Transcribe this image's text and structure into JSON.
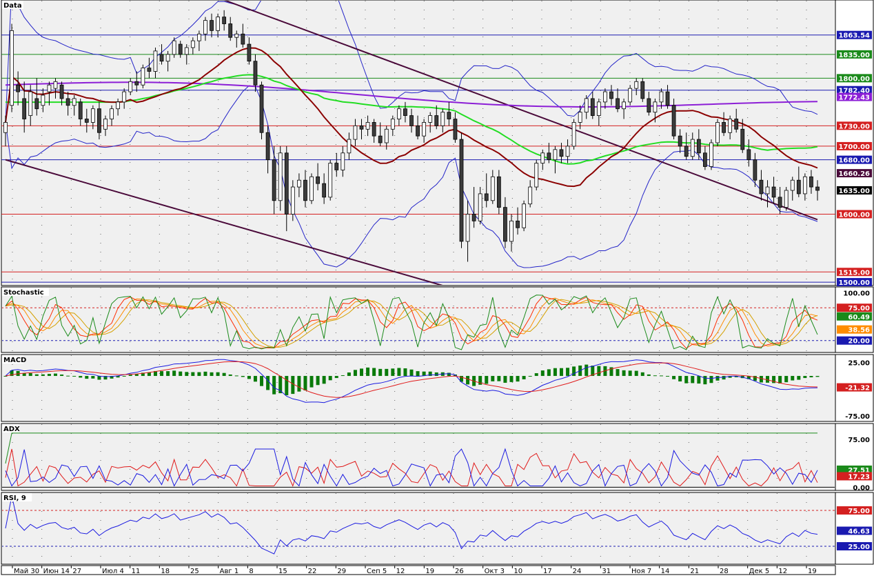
{
  "colors": {
    "panel_bg": "#f0f0f0",
    "axis_bg": "#ffffff",
    "candle_up": "#ffffff",
    "candle_down": "#3c3c3c",
    "candle_line": "#000000",
    "bollinger": "#2323c8",
    "ma_short": "#8b0000",
    "ma_mid": "#22dd22",
    "ma_long": "#8c1ed6",
    "trend": "#4a0a3a",
    "level_red": "#d42020",
    "level_green": "#1a8a1a",
    "level_blue": "#1a1ab0",
    "stoch_k": "#1a8a1a",
    "stoch_d1": "#ff2a00",
    "stoch_d2": "#ff8c00",
    "stoch_d3": "#d4a000",
    "macd_line": "#1a1ae0",
    "macd_signal": "#e01a1a",
    "macd_hist": "#0a7a0a",
    "adx_plus": "#e01a1a",
    "adx_minus": "#1a1ae0",
    "adx_main": "#1a8a1a",
    "rsi_line": "#1a1ae0"
  },
  "panels": {
    "price": {
      "label": "Data"
    },
    "stochastic": {
      "label": "Stochastic"
    },
    "macd": {
      "label": "MACD"
    },
    "adx": {
      "label": "ADX"
    },
    "rsi": {
      "label": "RSI, 9"
    }
  },
  "chart_data": {
    "type": "line",
    "x_ticks": [
      "Май 30",
      "Июн 14",
      "27",
      "Июл 4",
      "11",
      "18",
      "25",
      "Авг 1",
      "8",
      "15",
      "22",
      "29",
      "Сеп 5",
      "12",
      "19",
      "26",
      "Окт 3",
      "10",
      "17",
      "24",
      "31",
      "Ноя 7",
      "14",
      "21",
      "28",
      "Дек 5",
      "12",
      "19"
    ],
    "price": {
      "ylim": [
        1495,
        1915
      ],
      "candles": [
        [
          1720,
          1745,
          1700,
          1735
        ],
        [
          1760,
          1880,
          1750,
          1870
        ],
        [
          1790,
          1810,
          1760,
          1780
        ],
        [
          1770,
          1795,
          1720,
          1740
        ],
        [
          1745,
          1790,
          1730,
          1780
        ],
        [
          1770,
          1800,
          1745,
          1755
        ],
        [
          1760,
          1785,
          1750,
          1775
        ],
        [
          1780,
          1795,
          1760,
          1790
        ],
        [
          1785,
          1800,
          1770,
          1795
        ],
        [
          1790,
          1795,
          1760,
          1770
        ],
        [
          1770,
          1780,
          1745,
          1760
        ],
        [
          1760,
          1775,
          1745,
          1770
        ],
        [
          1765,
          1770,
          1730,
          1740
        ],
        [
          1740,
          1755,
          1720,
          1735
        ],
        [
          1735,
          1760,
          1725,
          1755
        ],
        [
          1755,
          1765,
          1710,
          1720
        ],
        [
          1725,
          1745,
          1715,
          1740
        ],
        [
          1740,
          1760,
          1730,
          1755
        ],
        [
          1755,
          1770,
          1745,
          1765
        ],
        [
          1765,
          1785,
          1755,
          1780
        ],
        [
          1780,
          1800,
          1775,
          1795
        ],
        [
          1795,
          1810,
          1780,
          1790
        ],
        [
          1790,
          1820,
          1785,
          1815
        ],
        [
          1815,
          1830,
          1800,
          1810
        ],
        [
          1810,
          1845,
          1800,
          1840
        ],
        [
          1835,
          1850,
          1820,
          1825
        ],
        [
          1825,
          1840,
          1810,
          1835
        ],
        [
          1835,
          1860,
          1830,
          1855
        ],
        [
          1850,
          1855,
          1830,
          1835
        ],
        [
          1835,
          1850,
          1820,
          1845
        ],
        [
          1845,
          1860,
          1835,
          1855
        ],
        [
          1855,
          1870,
          1840,
          1865
        ],
        [
          1865,
          1890,
          1855,
          1885
        ],
        [
          1885,
          1895,
          1860,
          1870
        ],
        [
          1870,
          1895,
          1860,
          1890
        ],
        [
          1890,
          1900,
          1870,
          1880
        ],
        [
          1880,
          1890,
          1855,
          1860
        ],
        [
          1860,
          1870,
          1845,
          1865
        ],
        [
          1865,
          1880,
          1845,
          1850
        ],
        [
          1850,
          1860,
          1820,
          1825
        ],
        [
          1825,
          1835,
          1780,
          1790
        ],
        [
          1790,
          1795,
          1710,
          1720
        ],
        [
          1720,
          1730,
          1660,
          1680
        ],
        [
          1680,
          1700,
          1600,
          1620
        ],
        [
          1620,
          1700,
          1605,
          1690
        ],
        [
          1690,
          1700,
          1575,
          1600
        ],
        [
          1600,
          1650,
          1590,
          1640
        ],
        [
          1640,
          1660,
          1625,
          1650
        ],
        [
          1650,
          1665,
          1610,
          1620
        ],
        [
          1620,
          1660,
          1615,
          1655
        ],
        [
          1655,
          1675,
          1635,
          1645
        ],
        [
          1645,
          1660,
          1615,
          1625
        ],
        [
          1625,
          1680,
          1620,
          1675
        ],
        [
          1675,
          1690,
          1655,
          1665
        ],
        [
          1665,
          1700,
          1655,
          1690
        ],
        [
          1690,
          1720,
          1680,
          1710
        ],
        [
          1710,
          1740,
          1700,
          1730
        ],
        [
          1730,
          1740,
          1710,
          1725
        ],
        [
          1725,
          1745,
          1715,
          1735
        ],
        [
          1735,
          1740,
          1705,
          1715
        ],
        [
          1715,
          1735,
          1700,
          1705
        ],
        [
          1705,
          1730,
          1695,
          1725
        ],
        [
          1725,
          1745,
          1715,
          1740
        ],
        [
          1740,
          1760,
          1730,
          1755
        ],
        [
          1755,
          1765,
          1735,
          1745
        ],
        [
          1745,
          1755,
          1720,
          1730
        ],
        [
          1730,
          1745,
          1710,
          1715
        ],
        [
          1715,
          1740,
          1705,
          1735
        ],
        [
          1735,
          1750,
          1720,
          1745
        ],
        [
          1745,
          1760,
          1725,
          1730
        ],
        [
          1730,
          1755,
          1720,
          1750
        ],
        [
          1750,
          1765,
          1730,
          1740
        ],
        [
          1740,
          1750,
          1705,
          1710
        ],
        [
          1710,
          1720,
          1550,
          1560
        ],
        [
          1560,
          1620,
          1530,
          1600
        ],
        [
          1600,
          1640,
          1580,
          1590
        ],
        [
          1590,
          1640,
          1585,
          1630
        ],
        [
          1630,
          1660,
          1610,
          1620
        ],
        [
          1620,
          1665,
          1615,
          1655
        ],
        [
          1655,
          1665,
          1600,
          1610
        ],
        [
          1610,
          1625,
          1550,
          1560
        ],
        [
          1560,
          1600,
          1545,
          1590
        ],
        [
          1590,
          1610,
          1570,
          1580
        ],
        [
          1580,
          1620,
          1575,
          1615
        ],
        [
          1615,
          1650,
          1610,
          1640
        ],
        [
          1640,
          1680,
          1635,
          1675
        ],
        [
          1675,
          1695,
          1665,
          1690
        ],
        [
          1690,
          1705,
          1675,
          1680
        ],
        [
          1680,
          1700,
          1660,
          1695
        ],
        [
          1695,
          1705,
          1675,
          1685
        ],
        [
          1685,
          1710,
          1675,
          1700
        ],
        [
          1700,
          1740,
          1695,
          1735
        ],
        [
          1735,
          1760,
          1725,
          1750
        ],
        [
          1750,
          1775,
          1740,
          1770
        ],
        [
          1770,
          1780,
          1740,
          1745
        ],
        [
          1745,
          1770,
          1730,
          1765
        ],
        [
          1765,
          1785,
          1755,
          1780
        ],
        [
          1780,
          1790,
          1760,
          1770
        ],
        [
          1770,
          1785,
          1750,
          1755
        ],
        [
          1755,
          1770,
          1740,
          1765
        ],
        [
          1765,
          1790,
          1760,
          1785
        ],
        [
          1785,
          1800,
          1775,
          1795
        ],
        [
          1795,
          1800,
          1765,
          1770
        ],
        [
          1770,
          1780,
          1745,
          1750
        ],
        [
          1750,
          1770,
          1735,
          1765
        ],
        [
          1765,
          1785,
          1755,
          1780
        ],
        [
          1780,
          1790,
          1755,
          1760
        ],
        [
          1760,
          1770,
          1710,
          1715
        ],
        [
          1715,
          1725,
          1690,
          1700
        ],
        [
          1700,
          1720,
          1680,
          1685
        ],
        [
          1685,
          1720,
          1680,
          1710
        ],
        [
          1710,
          1725,
          1680,
          1690
        ],
        [
          1690,
          1700,
          1665,
          1670
        ],
        [
          1670,
          1710,
          1665,
          1705
        ],
        [
          1705,
          1740,
          1700,
          1735
        ],
        [
          1735,
          1750,
          1715,
          1720
        ],
        [
          1720,
          1745,
          1710,
          1740
        ],
        [
          1740,
          1755,
          1720,
          1725
        ],
        [
          1725,
          1740,
          1690,
          1695
        ],
        [
          1695,
          1710,
          1670,
          1680
        ],
        [
          1680,
          1690,
          1640,
          1650
        ],
        [
          1650,
          1665,
          1620,
          1630
        ],
        [
          1630,
          1650,
          1610,
          1640
        ],
        [
          1640,
          1655,
          1615,
          1625
        ],
        [
          1625,
          1640,
          1600,
          1610
        ],
        [
          1610,
          1640,
          1605,
          1635
        ],
        [
          1635,
          1655,
          1620,
          1650
        ],
        [
          1650,
          1670,
          1625,
          1630
        ],
        [
          1630,
          1660,
          1620,
          1655
        ],
        [
          1655,
          1665,
          1630,
          1640
        ],
        [
          1640,
          1650,
          1620,
          1635
        ]
      ],
      "levels": [
        {
          "value": 1863.54,
          "label": "1863.54",
          "kind": "blue"
        },
        {
          "value": 1835.0,
          "label": "1835.00",
          "kind": "green"
        },
        {
          "value": 1800.0,
          "label": "1800.00",
          "kind": "green"
        },
        {
          "value": 1782.4,
          "label": "1782.40",
          "kind": "blue"
        },
        {
          "value": 1730.0,
          "label": "1730.00",
          "kind": "red"
        },
        {
          "value": 1700.0,
          "label": "1700.00",
          "kind": "red"
        },
        {
          "value": 1680.0,
          "label": "1680.00",
          "kind": "blue"
        },
        {
          "value": 1600.0,
          "label": "1600.00",
          "kind": "red"
        },
        {
          "value": 1515.0,
          "label": "1515.00",
          "kind": "red"
        },
        {
          "value": 1500.0,
          "label": "1500.00",
          "kind": "blue"
        }
      ],
      "axis_tags": [
        {
          "value": 1772.43,
          "label": "1772.43",
          "kind": "purple"
        },
        {
          "value": 1660.26,
          "label": "1660.26",
          "kind": "dark"
        },
        {
          "value": 1635.0,
          "label": "1635.00",
          "kind": "black"
        }
      ]
    },
    "stochastic": {
      "ylim": [
        0,
        110
      ],
      "levels": [
        75,
        20
      ],
      "axis_labels": [
        {
          "value": 100,
          "label": "100.00",
          "kind": "plain"
        },
        {
          "value": 75,
          "label": "75.00",
          "kind": "red"
        },
        {
          "value": 60.49,
          "label": "60.49",
          "kind": "green"
        },
        {
          "value": 38.56,
          "label": "38.56",
          "kind": "orange"
        },
        {
          "value": 20,
          "label": "20.00",
          "kind": "blue"
        }
      ]
    },
    "macd": {
      "ylim": [
        -85,
        40
      ],
      "axis_labels": [
        {
          "value": 25,
          "label": "25.00",
          "kind": "plain"
        },
        {
          "value": -21.32,
          "label": "-21.32",
          "kind": "red"
        },
        {
          "value": -75,
          "label": "-75.00",
          "kind": "plain"
        }
      ]
    },
    "adx": {
      "ylim": [
        -5,
        100
      ],
      "axis_labels": [
        {
          "value": 75,
          "label": "75.00",
          "kind": "plain"
        },
        {
          "value": 27.51,
          "label": "27.51",
          "kind": "green"
        },
        {
          "value": 17.23,
          "label": "17.23",
          "kind": "red"
        },
        {
          "value": 0,
          "label": "0.00",
          "kind": "plain"
        }
      ]
    },
    "rsi": {
      "ylim": [
        0,
        100
      ],
      "levels": [
        75,
        25
      ],
      "axis_labels": [
        {
          "value": 75,
          "label": "75.00",
          "kind": "red"
        },
        {
          "value": 46.63,
          "label": "46.63",
          "kind": "blue"
        },
        {
          "value": 25,
          "label": "25.00",
          "kind": "blue"
        }
      ]
    }
  }
}
